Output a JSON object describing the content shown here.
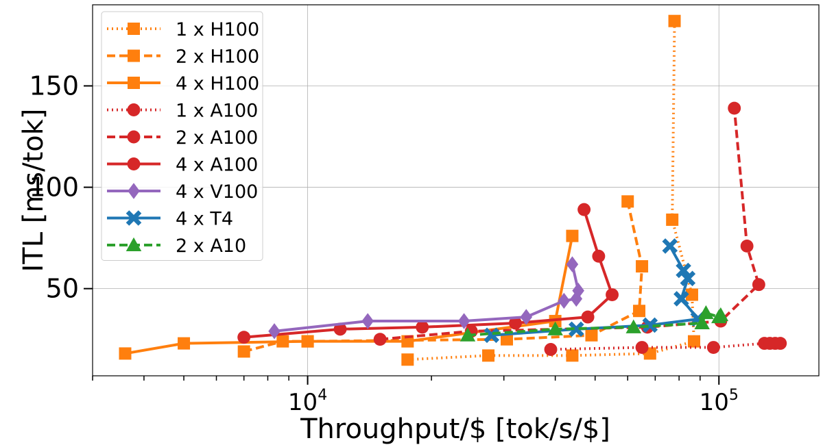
{
  "chart_data": {
    "type": "line",
    "title": "",
    "xlabel": "Throughput/$ [tok/s/$]",
    "ylabel": "ITL [ms/tok]",
    "xscale": "log",
    "xlim": [
      3000,
      175000
    ],
    "ylim": [
      7,
      190
    ],
    "x_major_ticks": [
      10000,
      100000
    ],
    "x_major_tick_labels": [
      {
        "base": "10",
        "exp": "4"
      },
      {
        "base": "10",
        "exp": "5"
      }
    ],
    "y_ticks": [
      50,
      100,
      150
    ],
    "y_tick_labels": [
      "50",
      "100",
      "150"
    ],
    "grid": true,
    "legend_position": "upper-left",
    "series": [
      {
        "name": "1 x H100",
        "color": "#ff7f0e",
        "linestyle": "dotted",
        "marker": "square",
        "points": [
          [
            17500,
            15
          ],
          [
            27500,
            17
          ],
          [
            44000,
            17
          ],
          [
            68000,
            18
          ],
          [
            87000,
            24
          ],
          [
            86000,
            47
          ],
          [
            77000,
            84
          ],
          [
            78000,
            182
          ]
        ]
      },
      {
        "name": "2 x H100",
        "color": "#ff7f0e",
        "linestyle": "dashed",
        "marker": "square",
        "points": [
          [
            7000,
            19
          ],
          [
            8700,
            24
          ],
          [
            10000,
            24
          ],
          [
            30500,
            25
          ],
          [
            49000,
            27
          ],
          [
            64000,
            39
          ],
          [
            65000,
            61
          ],
          [
            60000,
            93
          ]
        ]
      },
      {
        "name": "4 x H100",
        "color": "#ff7f0e",
        "linestyle": "solid",
        "marker": "square",
        "points": [
          [
            3600,
            18
          ],
          [
            5000,
            23
          ],
          [
            10000,
            24
          ],
          [
            17500,
            24
          ],
          [
            40000,
            34
          ],
          [
            44000,
            76
          ]
        ]
      },
      {
        "name": "1 x A100",
        "color": "#d62728",
        "linestyle": "dotted",
        "marker": "circle",
        "points": [
          [
            39000,
            20
          ],
          [
            65000,
            21
          ],
          [
            97000,
            21
          ],
          [
            129000,
            23
          ],
          [
            133000,
            23
          ],
          [
            137000,
            23
          ],
          [
            141000,
            23
          ]
        ]
      },
      {
        "name": "2 x A100",
        "color": "#d62728",
        "linestyle": "dashed",
        "marker": "circle",
        "points": [
          [
            15000,
            25
          ],
          [
            25000,
            29
          ],
          [
            67000,
            31
          ],
          [
            101000,
            34
          ],
          [
            125000,
            52
          ],
          [
            117000,
            71
          ],
          [
            109000,
            139
          ]
        ]
      },
      {
        "name": "4 x A100",
        "color": "#d62728",
        "linestyle": "solid",
        "marker": "circle",
        "points": [
          [
            7000,
            26
          ],
          [
            12000,
            30
          ],
          [
            19000,
            31
          ],
          [
            32000,
            33
          ],
          [
            48000,
            36
          ],
          [
            55000,
            47
          ],
          [
            51000,
            66
          ],
          [
            47000,
            89
          ]
        ]
      },
      {
        "name": "4 x V100",
        "color": "#9467bd",
        "linestyle": "solid",
        "marker": "diamond",
        "points": [
          [
            8300,
            29
          ],
          [
            14000,
            34
          ],
          [
            24000,
            34
          ],
          [
            34000,
            36
          ],
          [
            42000,
            44
          ],
          [
            45000,
            45
          ],
          [
            45500,
            49
          ],
          [
            44000,
            62
          ]
        ]
      },
      {
        "name": "4 x T4",
        "color": "#1f77b4",
        "linestyle": "solid",
        "marker": "x",
        "points": [
          [
            28000,
            27
          ],
          [
            45000,
            30
          ],
          [
            68000,
            32
          ],
          [
            89000,
            35
          ],
          [
            81000,
            45
          ],
          [
            84000,
            55
          ],
          [
            82000,
            59
          ],
          [
            76000,
            71
          ]
        ]
      },
      {
        "name": "2 x A10",
        "color": "#2ca02c",
        "linestyle": "dashed",
        "marker": "triangle",
        "points": [
          [
            24500,
            27
          ],
          [
            40000,
            30
          ],
          [
            62000,
            31
          ],
          [
            91000,
            33
          ],
          [
            93000,
            38
          ],
          [
            100000,
            36
          ],
          [
            101000,
            37
          ]
        ]
      }
    ]
  }
}
